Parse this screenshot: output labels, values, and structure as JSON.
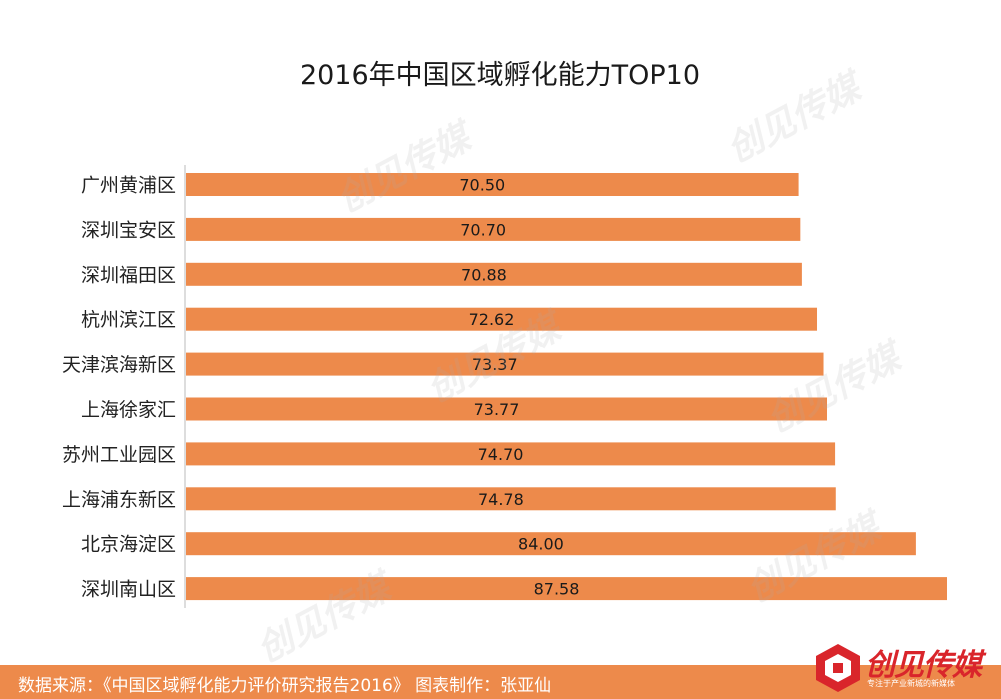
{
  "chart_data": {
    "type": "bar",
    "orientation": "horizontal",
    "title": "2016年中国区域孵化能力TOP10",
    "categories": [
      "广州黄浦区",
      "深圳宝安区",
      "深圳福田区",
      "杭州滨江区",
      "天津滨海新区",
      "上海徐家汇",
      "苏州工业园区",
      "上海浦东新区",
      "北京海淀区",
      "深圳南山区"
    ],
    "values": [
      70.5,
      70.7,
      70.88,
      72.62,
      73.37,
      73.77,
      74.7,
      74.78,
      84.0,
      87.58
    ],
    "value_labels": [
      "70.50",
      "70.70",
      "70.88",
      "72.62",
      "73.37",
      "73.77",
      "74.70",
      "74.78",
      "84.00",
      "87.58"
    ],
    "xlim": [
      0,
      87.58
    ],
    "grid": false,
    "legend": "none",
    "bar_color": "#ed8a4b"
  },
  "footer": {
    "source": "数据来源：《中国区域孵化能力评价研究报告2016》   图表制作：张亚仙",
    "background": "#ed8a4b"
  },
  "logo": {
    "brand": "创见传媒",
    "tagline": "专注于产业新城的新媒体",
    "accent": "#d9252b"
  },
  "watermark": "创见传媒"
}
